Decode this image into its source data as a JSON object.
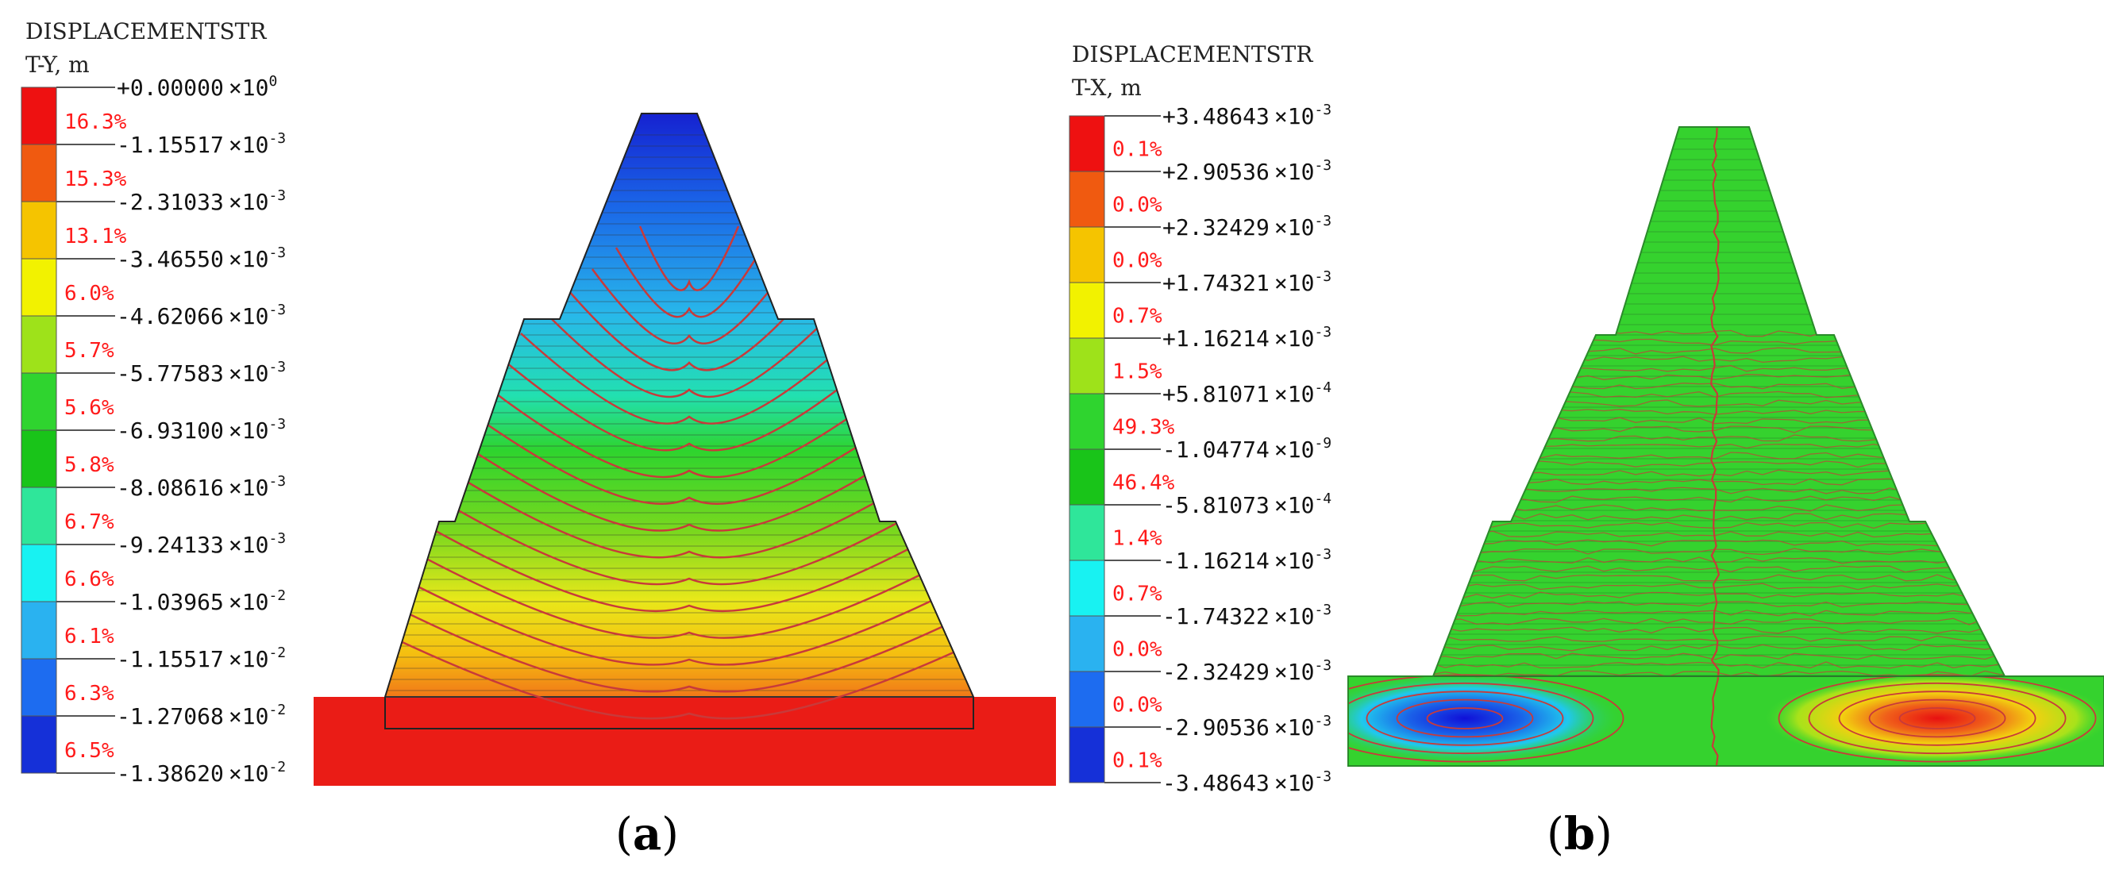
{
  "panel_a": {
    "caption": "a",
    "legend": {
      "title_line1": "DISPLACEMENTSTR",
      "title_line2": "T-Y,  m",
      "levels": [
        {
          "value": "+0.00000",
          "exp": "0"
        },
        {
          "value": "-1.15517",
          "exp": "-3"
        },
        {
          "value": "-2.31033",
          "exp": "-3"
        },
        {
          "value": "-3.46550",
          "exp": "-3"
        },
        {
          "value": "-4.62066",
          "exp": "-3"
        },
        {
          "value": "-5.77583",
          "exp": "-3"
        },
        {
          "value": "-6.93100",
          "exp": "-3"
        },
        {
          "value": "-8.08616",
          "exp": "-3"
        },
        {
          "value": "-9.24133",
          "exp": "-3"
        },
        {
          "value": "-1.03965",
          "exp": "-2"
        },
        {
          "value": "-1.15517",
          "exp": "-2"
        },
        {
          "value": "-1.27068",
          "exp": "-2"
        },
        {
          "value": "-1.38620",
          "exp": "-2"
        }
      ],
      "bands": [
        {
          "pct": "16.3%",
          "color": "#ee1111"
        },
        {
          "pct": "15.3%",
          "color": "#f05a10"
        },
        {
          "pct": "13.1%",
          "color": "#f5c400"
        },
        {
          "pct": "6.0%",
          "color": "#f2f200"
        },
        {
          "pct": "5.7%",
          "color": "#9ee21a"
        },
        {
          "pct": "5.6%",
          "color": "#2fd42f"
        },
        {
          "pct": "5.8%",
          "color": "#19c419"
        },
        {
          "pct": "6.7%",
          "color": "#2fe69a"
        },
        {
          "pct": "6.6%",
          "color": "#18f2f2"
        },
        {
          "pct": "6.1%",
          "color": "#2ab2f0"
        },
        {
          "pct": "6.3%",
          "color": "#1d6cf0"
        },
        {
          "pct": "6.5%",
          "color": "#1530d8"
        }
      ]
    }
  },
  "panel_b": {
    "caption": "b",
    "legend": {
      "title_line1": "DISPLACEMENTSTR",
      "title_line2": "T-X,  m",
      "levels": [
        {
          "value": "+3.48643",
          "exp": "-3"
        },
        {
          "value": "+2.90536",
          "exp": "-3"
        },
        {
          "value": "+2.32429",
          "exp": "-3"
        },
        {
          "value": "+1.74321",
          "exp": "-3"
        },
        {
          "value": "+1.16214",
          "exp": "-3"
        },
        {
          "value": "+5.81071",
          "exp": "-4"
        },
        {
          "value": "-1.04774",
          "exp": "-9"
        },
        {
          "value": "-5.81073",
          "exp": "-4"
        },
        {
          "value": "-1.16214",
          "exp": "-3"
        },
        {
          "value": "-1.74322",
          "exp": "-3"
        },
        {
          "value": "-2.32429",
          "exp": "-3"
        },
        {
          "value": "-2.90536",
          "exp": "-3"
        },
        {
          "value": "-3.48643",
          "exp": "-3"
        }
      ],
      "bands": [
        {
          "pct": "0.1%",
          "color": "#ee1111"
        },
        {
          "pct": "0.0%",
          "color": "#f05a10"
        },
        {
          "pct": "0.0%",
          "color": "#f5c400"
        },
        {
          "pct": "0.7%",
          "color": "#f2f200"
        },
        {
          "pct": "1.5%",
          "color": "#9ee21a"
        },
        {
          "pct": "49.3%",
          "color": "#2fd42f"
        },
        {
          "pct": "46.4%",
          "color": "#19c419"
        },
        {
          "pct": "1.4%",
          "color": "#2fe69a"
        },
        {
          "pct": "0.7%",
          "color": "#18f2f2"
        },
        {
          "pct": "0.0%",
          "color": "#2ab2f0"
        },
        {
          "pct": "0.0%",
          "color": "#1d6cf0"
        },
        {
          "pct": "0.1%",
          "color": "#1530d8"
        }
      ]
    }
  },
  "colors": {
    "contour": "#c83a3a",
    "layer_line": "#333333"
  }
}
